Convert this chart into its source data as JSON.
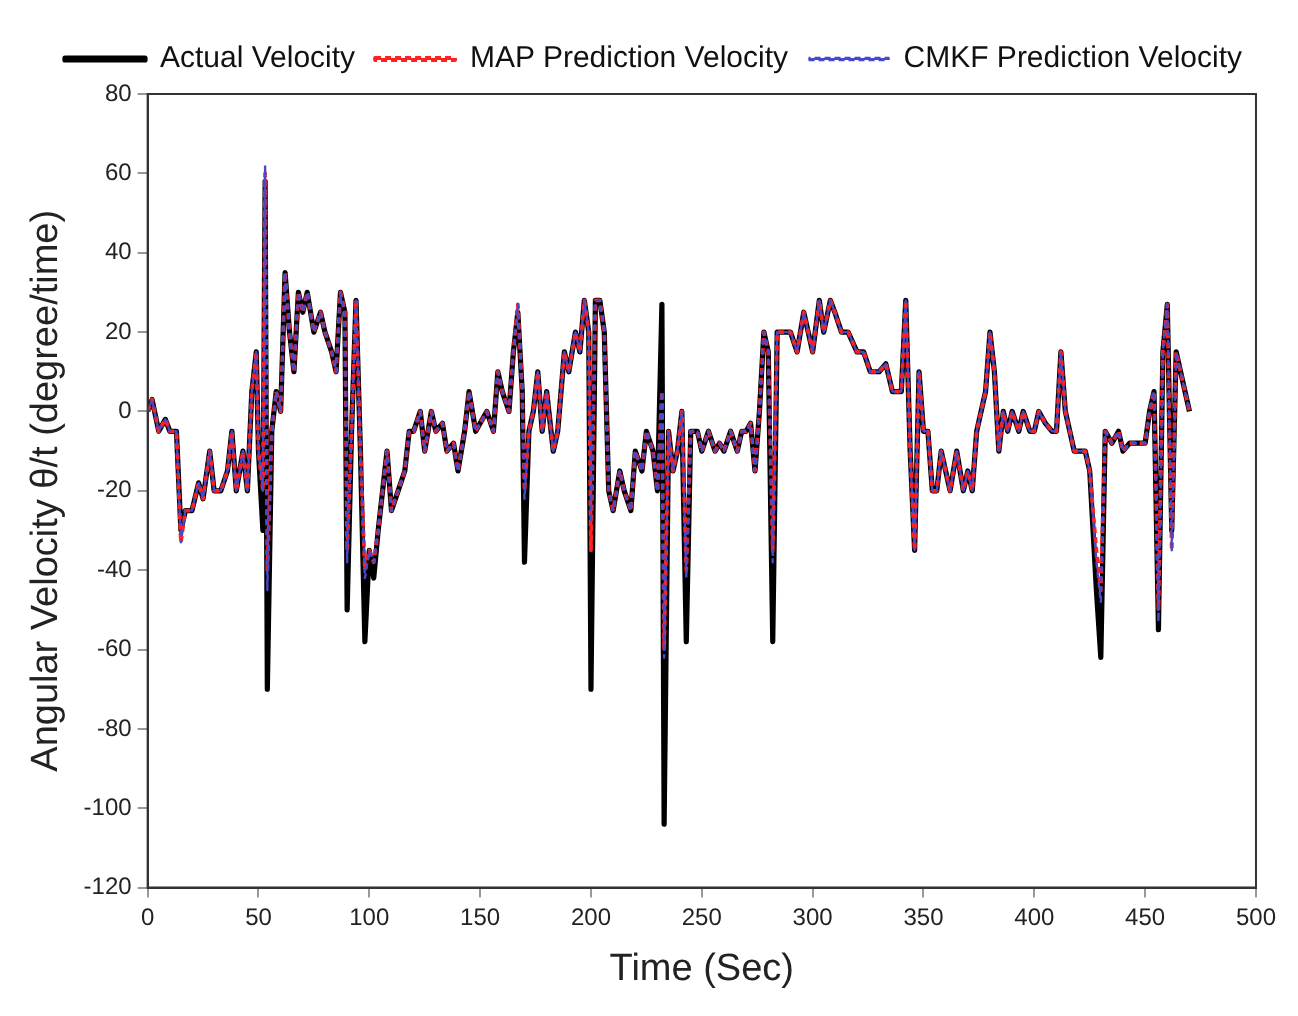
{
  "chart_data": {
    "type": "line",
    "xlabel": "Time (Sec)",
    "ylabel": "Angular Velocity θ/t (degree/time)",
    "x": [
      0,
      2,
      5,
      8,
      10,
      13,
      15,
      17,
      20,
      23,
      25,
      28,
      30,
      33,
      36,
      38,
      40,
      43,
      45,
      47,
      49,
      50,
      52,
      53,
      54,
      56,
      58,
      60,
      62,
      64,
      66,
      68,
      70,
      72,
      75,
      78,
      80,
      83,
      85,
      87,
      89,
      90,
      92,
      94,
      96,
      98,
      100,
      102,
      104,
      106,
      108,
      110,
      113,
      116,
      118,
      120,
      123,
      125,
      128,
      130,
      133,
      135,
      138,
      140,
      143,
      145,
      148,
      150,
      153,
      156,
      158,
      160,
      163,
      165,
      167,
      169,
      170,
      172,
      174,
      176,
      178,
      180,
      183,
      185,
      188,
      190,
      193,
      195,
      197,
      199,
      200,
      202,
      204,
      206,
      208,
      210,
      213,
      215,
      218,
      220,
      223,
      225,
      228,
      230,
      232,
      233,
      235,
      237,
      239,
      241,
      243,
      245,
      248,
      250,
      253,
      256,
      258,
      260,
      263,
      266,
      268,
      270,
      272,
      274,
      276,
      278,
      280,
      282,
      284,
      287,
      290,
      293,
      296,
      300,
      303,
      305,
      308,
      310,
      313,
      316,
      320,
      323,
      326,
      330,
      333,
      336,
      340,
      342,
      344,
      346,
      348,
      350,
      352,
      354,
      356,
      358,
      360,
      362,
      365,
      368,
      370,
      372,
      374,
      376,
      378,
      380,
      382,
      384,
      386,
      388,
      390,
      393,
      395,
      398,
      400,
      402,
      405,
      408,
      410,
      412,
      414,
      416,
      418,
      420,
      423,
      425,
      428,
      430,
      432,
      435,
      438,
      440,
      443,
      446,
      450,
      452,
      454,
      456,
      458,
      460,
      462,
      464,
      466,
      468,
      470
    ],
    "xlim": [
      0,
      500
    ],
    "xticks": [
      0,
      50,
      100,
      150,
      200,
      250,
      300,
      350,
      400,
      450,
      500
    ],
    "ylim": [
      -120,
      80
    ],
    "yticks": [
      -120,
      -100,
      -80,
      -60,
      -40,
      -20,
      0,
      20,
      40,
      60,
      80
    ],
    "grid": false,
    "legend": "top right",
    "series": [
      {
        "name": "Actual Velocity",
        "color": "#000000",
        "line_style": "solid",
        "values": [
          0,
          3,
          -5,
          -2,
          -5,
          -5,
          -30,
          -25,
          -25,
          -18,
          -22,
          -10,
          -20,
          -20,
          -15,
          -5,
          -20,
          -10,
          -20,
          5,
          15,
          -10,
          -30,
          58,
          -70,
          -5,
          5,
          0,
          35,
          20,
          10,
          30,
          25,
          30,
          20,
          25,
          20,
          15,
          10,
          30,
          25,
          -50,
          -5,
          28,
          -10,
          -58,
          -35,
          -42,
          -30,
          -20,
          -10,
          -25,
          -20,
          -15,
          -5,
          -5,
          0,
          -10,
          0,
          -5,
          -3,
          -10,
          -8,
          -15,
          -5,
          5,
          -5,
          -3,
          0,
          -5,
          10,
          5,
          0,
          15,
          25,
          5,
          -38,
          -5,
          0,
          10,
          -5,
          5,
          -10,
          -5,
          15,
          10,
          20,
          15,
          28,
          20,
          -70,
          28,
          28,
          20,
          -20,
          -25,
          -15,
          -20,
          -25,
          -10,
          -15,
          -5,
          -10,
          -20,
          27,
          -104,
          -5,
          -15,
          -10,
          0,
          -58,
          -5,
          -5,
          -10,
          -5,
          -10,
          -8,
          -10,
          -5,
          -10,
          -5,
          -5,
          -3,
          -15,
          0,
          20,
          15,
          -58,
          20,
          20,
          20,
          15,
          25,
          15,
          28,
          20,
          28,
          25,
          20,
          20,
          15,
          15,
          10,
          10,
          12,
          5,
          5,
          28,
          -10,
          -35,
          10,
          -5,
          -5,
          -20,
          -20,
          -10,
          -15,
          -20,
          -10,
          -20,
          -15,
          -20,
          -5,
          0,
          5,
          20,
          10,
          -10,
          0,
          -5,
          0,
          -5,
          0,
          -5,
          -5,
          0,
          -3,
          -5,
          -5,
          15,
          0,
          -5,
          -10,
          -10,
          -10,
          -15,
          -45,
          -62,
          -5,
          -8,
          -5,
          -10,
          -8,
          -8,
          -8,
          0,
          5,
          -55,
          15,
          27,
          -30,
          15,
          10,
          5,
          0
        ]
      },
      {
        "name": "MAP Prediction Velocity",
        "color": "#ff2020",
        "line_style": "dashed",
        "values": [
          0,
          3,
          -5,
          -2,
          -5,
          -5,
          -33,
          -25,
          -25,
          -18,
          -22,
          -10,
          -20,
          -20,
          -15,
          -5,
          -20,
          -10,
          -20,
          5,
          15,
          -10,
          -20,
          60,
          -40,
          -5,
          5,
          0,
          35,
          20,
          10,
          30,
          25,
          30,
          20,
          25,
          20,
          15,
          10,
          30,
          25,
          -35,
          -5,
          28,
          -10,
          -40,
          -35,
          -38,
          -30,
          -20,
          -10,
          -25,
          -20,
          -15,
          -5,
          -5,
          0,
          -10,
          0,
          -5,
          -3,
          -10,
          -8,
          -15,
          -5,
          5,
          -5,
          -3,
          0,
          -5,
          10,
          5,
          0,
          15,
          27,
          5,
          -20,
          -5,
          0,
          10,
          -5,
          5,
          -10,
          -5,
          15,
          10,
          20,
          15,
          28,
          20,
          -35,
          28,
          28,
          20,
          -20,
          -25,
          -15,
          -20,
          -25,
          -10,
          -15,
          -5,
          -10,
          -20,
          5,
          -60,
          -5,
          -15,
          -10,
          0,
          -40,
          -5,
          -5,
          -10,
          -5,
          -10,
          -8,
          -10,
          -5,
          -10,
          -5,
          -5,
          -3,
          -15,
          0,
          20,
          15,
          -35,
          20,
          20,
          20,
          15,
          25,
          15,
          28,
          20,
          28,
          25,
          20,
          20,
          15,
          15,
          10,
          10,
          12,
          5,
          5,
          28,
          -10,
          -35,
          10,
          -5,
          -5,
          -20,
          -20,
          -10,
          -15,
          -20,
          -10,
          -20,
          -15,
          -20,
          -5,
          0,
          5,
          20,
          10,
          -10,
          0,
          -5,
          0,
          -5,
          0,
          -5,
          -5,
          0,
          -3,
          -5,
          -5,
          15,
          0,
          -5,
          -10,
          -10,
          -10,
          -15,
          -35,
          -45,
          -5,
          -8,
          -5,
          -10,
          -8,
          -8,
          -8,
          0,
          5,
          -50,
          15,
          27,
          -35,
          15,
          10,
          5,
          0
        ]
      },
      {
        "name": "CMKF Prediction Velocity",
        "color": "#4848c8",
        "line_style": "dashed",
        "values": [
          0,
          3,
          -5,
          -2,
          -5,
          -5,
          -33,
          -25,
          -25,
          -18,
          -22,
          -10,
          -20,
          -20,
          -15,
          -5,
          -20,
          -10,
          -20,
          5,
          15,
          -10,
          -20,
          62,
          -45,
          -5,
          5,
          0,
          35,
          20,
          10,
          30,
          25,
          30,
          20,
          25,
          20,
          15,
          10,
          30,
          25,
          -38,
          -5,
          28,
          -10,
          -42,
          -35,
          -38,
          -30,
          -20,
          -10,
          -25,
          -20,
          -15,
          -5,
          -5,
          0,
          -10,
          0,
          -5,
          -3,
          -10,
          -8,
          -15,
          -5,
          5,
          -5,
          -3,
          0,
          -5,
          10,
          5,
          0,
          15,
          27,
          5,
          -22,
          -5,
          0,
          10,
          -5,
          5,
          -10,
          -5,
          15,
          10,
          20,
          15,
          28,
          20,
          -28,
          28,
          28,
          20,
          -20,
          -25,
          -15,
          -20,
          -25,
          -10,
          -15,
          -5,
          -10,
          -20,
          5,
          -62,
          -5,
          -15,
          -10,
          0,
          -42,
          -5,
          -5,
          -10,
          -5,
          -10,
          -8,
          -10,
          -5,
          -10,
          -5,
          -5,
          -3,
          -15,
          0,
          20,
          15,
          -38,
          20,
          20,
          20,
          15,
          25,
          15,
          28,
          20,
          28,
          25,
          20,
          20,
          15,
          15,
          10,
          10,
          12,
          5,
          5,
          28,
          -10,
          -35,
          10,
          -5,
          -5,
          -20,
          -20,
          -10,
          -15,
          -20,
          -10,
          -20,
          -15,
          -20,
          -5,
          0,
          5,
          20,
          10,
          -10,
          0,
          -5,
          0,
          -5,
          0,
          -5,
          -5,
          0,
          -3,
          -5,
          -5,
          15,
          0,
          -5,
          -10,
          -10,
          -10,
          -15,
          -38,
          -48,
          -5,
          -8,
          -5,
          -10,
          -8,
          -8,
          -8,
          0,
          5,
          -53,
          15,
          27,
          -35,
          15,
          10,
          5,
          0
        ]
      }
    ]
  }
}
